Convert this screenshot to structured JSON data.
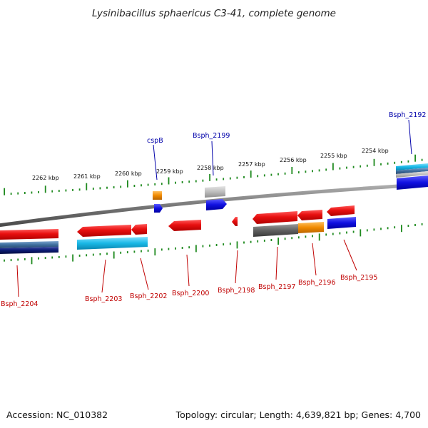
{
  "title": "Lysinibacillus sphaericus C3-41, complete genome",
  "footer": {
    "accession": "Accession: NC_010382",
    "summary": "Topology: circular; Length: 4,639,821 bp; Genes: 4,700"
  },
  "colors": {
    "backbone": "#7a7a7a",
    "ticks": "#1f8a1f",
    "gene_red": "#e81010",
    "cds_cyan": "#19b8e6",
    "cds_blue": "#1010e0",
    "cds_orange": "#f08a00",
    "cds_gray": "#606060",
    "cds_lightgray": "#bdbdbd",
    "cds_navy": "#0a1a70",
    "cds_steel": "#3f6fa0",
    "label_red": "#c00000",
    "label_blue": "#0000aa"
  },
  "kbp_labels": [
    "2262 kbp",
    "2261 kbp",
    "2260 kbp",
    "2259 kbp",
    "2258 kbp",
    "2257 kbp",
    "2256 kbp",
    "2255 kbp",
    "2254 kbp"
  ],
  "top_labels": [
    "cspB",
    "Bsph_2199",
    "Bsph_2192"
  ],
  "bottom_labels": [
    "Bsph_2204",
    "Bsph_2203",
    "Bsph_2202",
    "Bsph_2200",
    "Bsph_2198",
    "Bsph_2197",
    "Bsph_2196",
    "Bsph_2195"
  ]
}
